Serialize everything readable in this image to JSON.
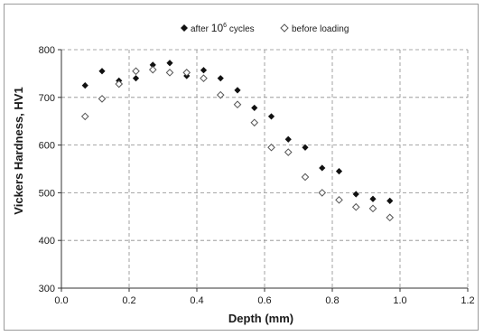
{
  "chart_data": {
    "type": "scatter",
    "title": "",
    "xlabel": "Depth  (mm)",
    "ylabel": "Vickers Hardness, HV1",
    "xlim": [
      0,
      1.2
    ],
    "ylim": [
      300,
      800
    ],
    "xticks": [
      "0.0",
      "0.2",
      "0.4",
      "0.6",
      "0.8",
      "1.0",
      "1.2"
    ],
    "yticks": [
      "300",
      "400",
      "500",
      "600",
      "700",
      "800"
    ],
    "grid": true,
    "legend_position": "top",
    "legend": {
      "after_prefix": "after ",
      "after_base": "10",
      "after_exp": "6",
      "after_suffix": " cycles",
      "before": "before loading"
    },
    "series": [
      {
        "name": "after 10^6 cycles",
        "marker": "filled-diamond",
        "color": "#111111",
        "x": [
          0.07,
          0.12,
          0.17,
          0.22,
          0.27,
          0.32,
          0.37,
          0.42,
          0.47,
          0.52,
          0.57,
          0.62,
          0.67,
          0.72,
          0.77,
          0.82,
          0.87,
          0.92,
          0.97
        ],
        "y": [
          725,
          755,
          735,
          740,
          768,
          772,
          745,
          757,
          740,
          715,
          678,
          660,
          612,
          595,
          552,
          545,
          497,
          487,
          483
        ]
      },
      {
        "name": "before loading",
        "marker": "open-diamond",
        "color": "#555555",
        "x": [
          0.07,
          0.12,
          0.17,
          0.22,
          0.27,
          0.32,
          0.37,
          0.42,
          0.47,
          0.52,
          0.57,
          0.62,
          0.67,
          0.72,
          0.77,
          0.82,
          0.87,
          0.92,
          0.97
        ],
        "y": [
          660,
          697,
          728,
          755,
          758,
          752,
          752,
          740,
          705,
          685,
          647,
          595,
          585,
          533,
          500,
          485,
          470,
          467,
          448
        ]
      }
    ]
  }
}
